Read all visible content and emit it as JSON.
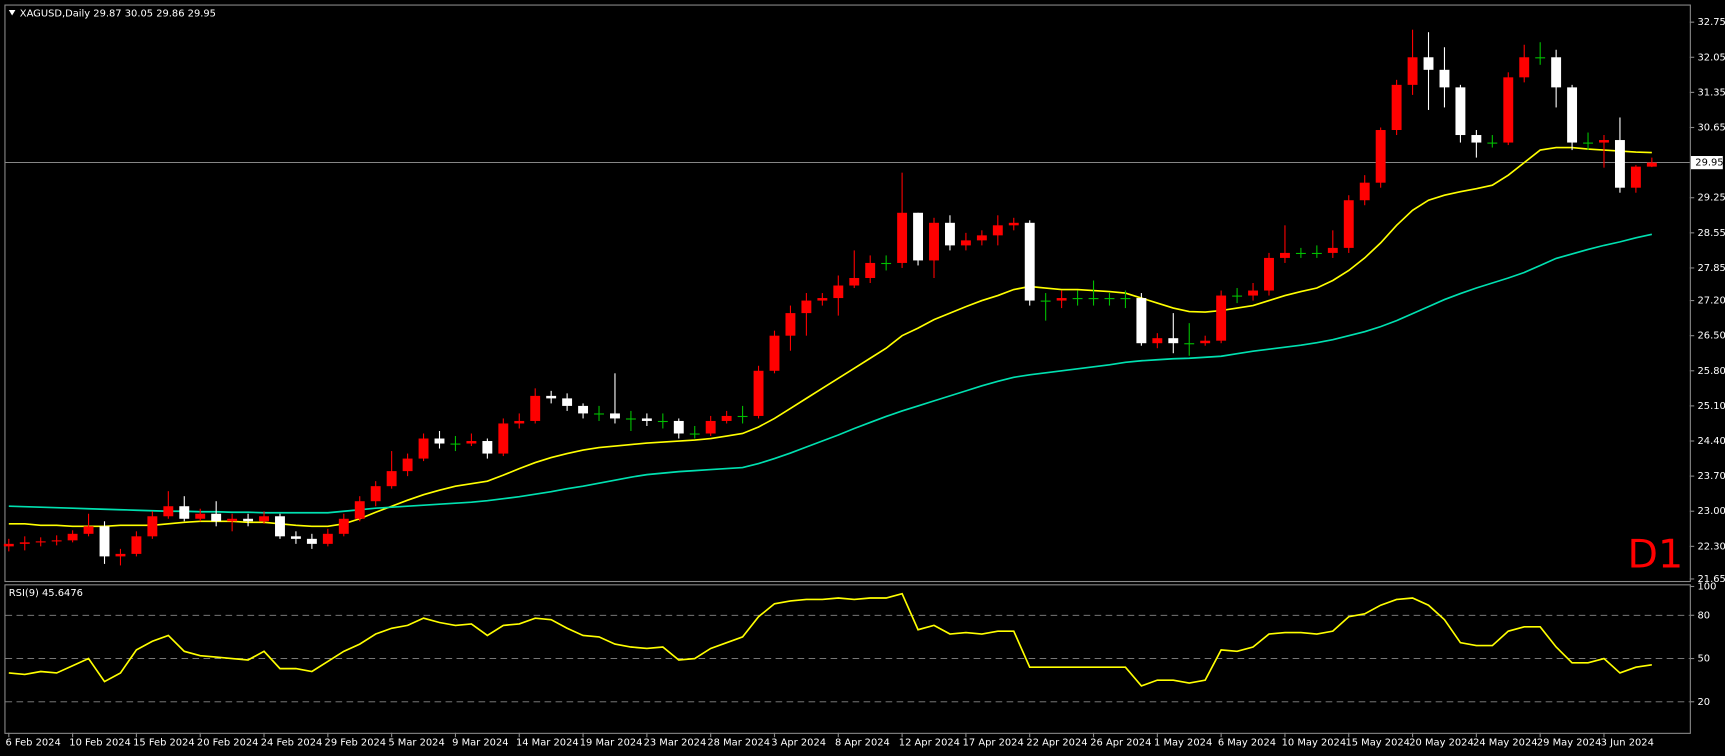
{
  "chart_data": [
    {
      "type": "candlestick",
      "title": "XAGUSD,Daily  29.87 30.05 29.86 29.95",
      "annotation": "D1",
      "annotation_color": "#ff0000",
      "up_color": "#ff0000",
      "down_color": "#ffffff",
      "doji_color": "#00c000",
      "ylim": [
        21.61,
        33.08
      ],
      "yticks": [
        32.75,
        32.05,
        31.35,
        30.65,
        29.25,
        28.55,
        27.85,
        {
          "value": 27.2,
          "label": "27.20"
        },
        {
          "value": 26.5,
          "label": "26.50"
        },
        {
          "value": 25.8,
          "label": "25.80"
        },
        {
          "value": 25.1,
          "label": "25.10"
        },
        {
          "value": 24.4,
          "label": "24.40"
        },
        {
          "value": 23.7,
          "label": "23.70"
        },
        {
          "value": 23.0,
          "label": "23.00"
        },
        {
          "value": 22.3,
          "label": "22.30"
        },
        21.65
      ],
      "price_line": 29.95,
      "categories": [
        "6 Feb 2024",
        null,
        null,
        null,
        "10 Feb 2024",
        null,
        null,
        null,
        "15 Feb 2024",
        null,
        null,
        null,
        "20 Feb 2024",
        null,
        null,
        null,
        "24 Feb 2024",
        null,
        null,
        null,
        "29 Feb 2024",
        null,
        null,
        null,
        "5 Mar 2024",
        null,
        null,
        null,
        "9 Mar 2024",
        null,
        null,
        null,
        "14 Mar 2024",
        null,
        null,
        null,
        "19 Mar 2024",
        null,
        null,
        null,
        "23 Mar 2024",
        null,
        null,
        null,
        "28 Mar 2024",
        null,
        null,
        null,
        "3 Apr 2024",
        null,
        null,
        null,
        "8 Apr 2024",
        null,
        null,
        null,
        "12 Apr 2024",
        null,
        null,
        null,
        "17 Apr 2024",
        null,
        null,
        null,
        "22 Apr 2024",
        null,
        null,
        null,
        "26 Apr 2024",
        null,
        null,
        null,
        "1 May 2024",
        null,
        null,
        null,
        "6 May 2024",
        null,
        null,
        null,
        "10 May 2024",
        null,
        null,
        null,
        "15 May 2024",
        null,
        null,
        null,
        "20 May 2024",
        null,
        null,
        null,
        "24 May 2024",
        null,
        null,
        null,
        "29 May 2024",
        null,
        null,
        null,
        "3 Jun 2024",
        null,
        null,
        null
      ],
      "open": [
        22.3,
        22.35,
        22.38,
        22.4,
        22.42,
        22.55,
        22.7,
        22.1,
        22.15,
        22.5,
        22.9,
        23.1,
        22.85,
        22.95,
        22.8,
        22.85,
        22.8,
        22.9,
        22.5,
        22.45,
        22.35,
        22.55,
        22.85,
        23.2,
        23.5,
        23.8,
        24.05,
        24.45,
        24.35,
        24.35,
        24.4,
        24.15,
        24.75,
        24.8,
        25.3,
        25.25,
        25.1,
        24.95,
        24.95,
        24.85,
        24.85,
        24.8,
        24.8,
        24.55,
        24.55,
        24.8,
        24.9,
        24.9,
        25.8,
        26.5,
        26.95,
        27.2,
        27.25,
        27.5,
        27.65,
        27.95,
        27.95,
        28.95,
        28.0,
        28.75,
        28.3,
        28.4,
        28.5,
        28.7,
        28.75,
        27.2,
        27.2,
        27.25,
        27.25,
        27.25,
        27.25,
        27.25,
        26.35,
        26.45,
        26.35,
        26.35,
        26.4,
        27.3,
        27.3,
        27.4,
        28.05,
        28.15,
        28.15,
        28.15,
        28.25,
        29.2,
        29.55,
        30.6,
        31.5,
        32.05,
        31.8,
        31.45,
        30.5,
        30.35,
        30.35,
        31.65,
        32.05,
        32.05,
        31.45,
        30.35,
        30.35,
        30.4,
        29.45,
        29.87
      ],
      "high": [
        22.45,
        22.5,
        22.48,
        22.52,
        22.62,
        22.95,
        22.8,
        22.25,
        22.6,
        23.0,
        23.4,
        23.3,
        23.05,
        23.2,
        22.95,
        22.95,
        23.0,
        22.95,
        22.6,
        22.55,
        22.65,
        22.95,
        23.3,
        23.6,
        24.2,
        24.15,
        24.55,
        24.6,
        24.5,
        24.55,
        24.45,
        24.85,
        24.95,
        25.45,
        25.4,
        25.35,
        25.15,
        25.1,
        25.75,
        25.0,
        24.95,
        24.95,
        24.85,
        24.7,
        24.9,
        25.0,
        25.1,
        25.9,
        26.6,
        27.1,
        27.35,
        27.35,
        27.7,
        28.2,
        28.1,
        28.1,
        29.75,
        28.95,
        28.85,
        28.9,
        28.55,
        28.6,
        28.9,
        28.85,
        28.8,
        27.35,
        27.4,
        27.4,
        27.6,
        27.35,
        27.4,
        27.35,
        26.55,
        26.95,
        26.75,
        26.5,
        27.4,
        27.45,
        27.55,
        28.15,
        28.7,
        28.25,
        28.3,
        28.6,
        29.3,
        29.7,
        30.65,
        31.6,
        32.6,
        32.55,
        32.25,
        31.5,
        30.6,
        30.5,
        31.75,
        32.3,
        32.35,
        32.2,
        31.5,
        30.55,
        30.5,
        30.85,
        29.9,
        30.05
      ],
      "low": [
        22.2,
        22.22,
        22.3,
        22.32,
        22.38,
        22.5,
        21.95,
        21.92,
        22.1,
        22.45,
        22.85,
        22.8,
        22.8,
        22.7,
        22.6,
        22.7,
        22.75,
        22.45,
        22.35,
        22.25,
        22.3,
        22.5,
        22.8,
        23.1,
        23.45,
        23.7,
        24.0,
        24.25,
        24.2,
        24.3,
        24.05,
        24.1,
        24.65,
        24.75,
        25.15,
        25.0,
        24.85,
        24.8,
        24.75,
        24.6,
        24.7,
        24.65,
        24.45,
        24.45,
        24.5,
        24.75,
        24.75,
        24.85,
        25.75,
        26.2,
        26.5,
        27.1,
        26.9,
        27.45,
        27.55,
        27.8,
        27.85,
        27.9,
        27.65,
        28.2,
        28.2,
        28.3,
        28.3,
        28.6,
        27.1,
        26.8,
        27.05,
        27.1,
        27.1,
        27.1,
        27.05,
        26.3,
        26.25,
        26.15,
        26.1,
        26.3,
        26.35,
        27.15,
        27.2,
        27.3,
        27.95,
        28.05,
        28.05,
        28.05,
        28.15,
        29.1,
        29.45,
        30.5,
        31.3,
        31.0,
        31.05,
        30.35,
        30.05,
        30.25,
        30.3,
        31.55,
        31.9,
        31.05,
        30.2,
        30.2,
        29.85,
        29.35,
        29.35,
        29.86
      ],
      "close": [
        22.35,
        22.38,
        22.4,
        22.42,
        22.55,
        22.7,
        22.1,
        22.15,
        22.5,
        22.9,
        23.1,
        22.85,
        22.95,
        22.8,
        22.85,
        22.8,
        22.9,
        22.5,
        22.45,
        22.35,
        22.55,
        22.85,
        23.2,
        23.5,
        23.8,
        24.05,
        24.45,
        24.35,
        24.35,
        24.4,
        24.15,
        24.75,
        24.8,
        25.3,
        25.25,
        25.1,
        24.95,
        24.95,
        24.85,
        24.85,
        24.8,
        24.8,
        24.55,
        24.55,
        24.8,
        24.9,
        24.9,
        25.8,
        26.5,
        26.95,
        27.2,
        27.25,
        27.5,
        27.65,
        27.95,
        27.95,
        28.95,
        28.0,
        28.75,
        28.3,
        28.4,
        28.5,
        28.7,
        28.75,
        27.2,
        27.2,
        27.25,
        27.25,
        27.25,
        27.25,
        27.25,
        26.35,
        26.45,
        26.35,
        26.35,
        26.4,
        27.3,
        27.3,
        27.4,
        28.05,
        28.15,
        28.15,
        28.15,
        28.25,
        29.2,
        29.55,
        30.6,
        31.5,
        32.05,
        31.8,
        31.45,
        30.5,
        30.35,
        30.35,
        31.65,
        32.05,
        32.05,
        31.45,
        30.35,
        30.35,
        30.4,
        29.45,
        29.87,
        29.95
      ],
      "lines": [
        {
          "color": "#ffff00",
          "values": [
            22.75,
            22.75,
            22.72,
            22.72,
            22.7,
            22.7,
            22.7,
            22.72,
            22.72,
            22.72,
            22.75,
            22.78,
            22.8,
            22.8,
            22.8,
            22.78,
            22.78,
            22.75,
            22.72,
            22.7,
            22.7,
            22.75,
            22.85,
            22.98,
            23.1,
            23.22,
            23.33,
            23.42,
            23.5,
            23.55,
            23.6,
            23.72,
            23.85,
            23.97,
            24.07,
            24.15,
            24.22,
            24.27,
            24.3,
            24.33,
            24.36,
            24.38,
            24.4,
            24.42,
            24.45,
            24.5,
            24.55,
            24.68,
            24.85,
            25.05,
            25.25,
            25.45,
            25.65,
            25.85,
            26.05,
            26.25,
            26.5,
            26.65,
            26.82,
            26.95,
            27.08,
            27.2,
            27.3,
            27.42,
            27.48,
            27.45,
            27.42,
            27.42,
            27.4,
            27.38,
            27.35,
            27.25,
            27.15,
            27.05,
            26.98,
            26.97,
            27.0,
            27.05,
            27.1,
            27.2,
            27.3,
            27.38,
            27.45,
            27.6,
            27.8,
            28.05,
            28.35,
            28.7,
            29.0,
            29.2,
            29.3,
            29.37,
            29.43,
            29.5,
            29.7,
            29.95,
            30.2,
            30.25,
            30.25,
            30.22,
            30.2,
            30.18,
            30.16,
            30.15
          ]
        },
        {
          "color": "#00e0b0",
          "values": [
            23.1,
            23.09,
            23.08,
            23.07,
            23.06,
            23.05,
            23.04,
            23.03,
            23.02,
            23.01,
            23.0,
            23.0,
            22.99,
            22.99,
            22.98,
            22.98,
            22.97,
            22.97,
            22.97,
            22.97,
            22.97,
            23.0,
            23.03,
            23.06,
            23.08,
            23.1,
            23.12,
            23.14,
            23.16,
            23.18,
            23.21,
            23.25,
            23.29,
            23.34,
            23.39,
            23.45,
            23.5,
            23.56,
            23.62,
            23.68,
            23.73,
            23.76,
            23.79,
            23.81,
            23.83,
            23.85,
            23.87,
            23.95,
            24.05,
            24.16,
            24.28,
            24.4,
            24.52,
            24.65,
            24.77,
            24.89,
            25.0,
            25.1,
            25.2,
            25.3,
            25.4,
            25.5,
            25.59,
            25.67,
            25.72,
            25.76,
            25.8,
            25.84,
            25.88,
            25.92,
            25.97,
            26.0,
            26.02,
            26.04,
            26.05,
            26.07,
            26.09,
            26.14,
            26.19,
            26.23,
            26.27,
            26.31,
            26.36,
            26.42,
            26.5,
            26.58,
            26.68,
            26.8,
            26.94,
            27.08,
            27.22,
            27.34,
            27.45,
            27.55,
            27.65,
            27.76,
            27.9,
            28.04,
            28.13,
            28.22,
            28.3,
            28.37,
            28.45,
            28.52
          ]
        }
      ]
    },
    {
      "type": "line",
      "title": "RSI(9) 45.6476",
      "color": "#ffff00",
      "ylim": [
        0,
        100
      ],
      "yticks": [
        100,
        80,
        50,
        20
      ],
      "levels": [
        80,
        50,
        20
      ],
      "values": [
        40,
        39,
        41,
        40,
        45,
        50,
        34,
        40,
        56,
        62,
        66,
        55,
        52,
        51,
        50,
        49,
        55,
        43,
        43,
        41,
        48,
        55,
        60,
        67,
        71,
        73,
        78,
        75,
        73,
        74,
        66,
        73,
        74,
        78,
        77,
        71,
        66,
        65,
        60,
        58,
        57,
        58,
        49,
        50,
        57,
        61,
        65,
        79,
        88,
        90,
        91,
        91,
        92,
        91,
        92,
        92,
        95,
        70,
        73,
        67,
        68,
        67,
        69,
        69,
        44,
        44,
        44,
        44,
        44,
        44,
        44,
        31,
        35,
        35,
        33,
        35,
        56,
        55,
        58,
        67,
        68,
        68,
        67,
        69,
        79,
        81,
        87,
        91,
        92,
        87,
        77,
        61,
        59,
        59,
        69,
        72,
        72,
        58,
        47,
        47,
        50,
        40,
        44,
        45.6476
      ]
    }
  ]
}
